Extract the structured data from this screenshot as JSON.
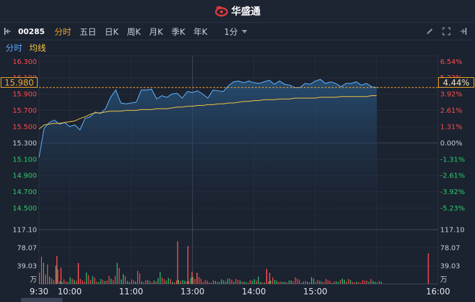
{
  "app": {
    "brand": "华盛通"
  },
  "toolbar": {
    "code": "00285",
    "tabs": [
      "分时",
      "五日",
      "日K",
      "周K",
      "月K",
      "季K",
      "年K"
    ],
    "period": "1分"
  },
  "subtabs": {
    "time": "分时",
    "avg": "均线"
  },
  "price_tag": "15.980",
  "pct_tag": "4.44%",
  "colors": {
    "up": "#ff4d4d",
    "down": "#2ecc71",
    "price_line": "#62b6ff",
    "avg_line": "#f5c542",
    "accent": "#f5a623"
  },
  "chart_data": {
    "type": "line",
    "price_axis": [
      "16.300",
      "16.100",
      "15.900",
      "15.700",
      "15.500",
      "15.300",
      "15.100",
      "14.900",
      "14.700",
      "14.500"
    ],
    "pct_axis": [
      "6.54%",
      "5.23%",
      "3.92%",
      "2.61%",
      "1.31%",
      "0.00%",
      "-1.31%",
      "-2.61%",
      "-3.92%",
      "-5.23%"
    ],
    "prev_close": 15.3,
    "ylim": [
      14.44,
      16.32
    ],
    "x_ticks": [
      "9:30",
      "10:00",
      "11:00",
      "13:00",
      "14:00",
      "15:00",
      "16:00"
    ],
    "volume_axis": [
      "117.10",
      "78.07",
      "39.03",
      "万"
    ],
    "x": [
      0,
      5,
      10,
      15,
      20,
      25,
      30,
      35,
      40,
      45,
      50,
      55,
      60,
      65,
      70,
      75,
      80,
      85,
      90,
      95,
      100,
      105,
      110,
      115,
      120,
      125,
      130,
      135,
      140,
      145,
      150,
      155,
      160,
      165,
      170,
      175,
      180,
      185,
      190,
      195,
      200,
      205,
      210,
      215,
      220,
      225,
      230,
      235,
      240,
      245,
      250,
      255,
      260,
      265,
      270,
      275,
      280,
      285,
      290,
      295,
      300,
      305,
      310,
      315,
      320,
      325,
      330
    ],
    "price": [
      15.12,
      15.48,
      15.55,
      15.58,
      15.53,
      15.55,
      15.5,
      15.52,
      15.46,
      15.6,
      15.62,
      15.68,
      15.66,
      15.72,
      15.86,
      15.95,
      15.79,
      15.78,
      15.79,
      15.8,
      15.95,
      15.95,
      15.96,
      15.84,
      15.88,
      15.86,
      15.9,
      15.91,
      15.85,
      15.93,
      15.92,
      15.94,
      15.9,
      15.85,
      15.95,
      15.94,
      15.93,
      16.0,
      16.05,
      16.06,
      16.04,
      16.06,
      16.04,
      16.03,
      16.05,
      16.07,
      16.02,
      16.06,
      16.02,
      16.01,
      15.98,
      15.98,
      16.03,
      16.02,
      16.06,
      16.08,
      16.03,
      16.05,
      16.03,
      15.99,
      16.03,
      16.03,
      16.05,
      16.01,
      16.03,
      15.99,
      15.98
    ],
    "avg": [
      15.47,
      15.52,
      15.53,
      15.54,
      15.54,
      15.55,
      15.56,
      15.57,
      15.6,
      15.62,
      15.65,
      15.67,
      15.67,
      15.68,
      15.69,
      15.69,
      15.69,
      15.7,
      15.7,
      15.7,
      15.71,
      15.71,
      15.71,
      15.72,
      15.72,
      15.72,
      15.73,
      15.74,
      15.74,
      15.75,
      15.75,
      15.76,
      15.76,
      15.77,
      15.77,
      15.78,
      15.78,
      15.79,
      15.79,
      15.8,
      15.81,
      15.81,
      15.82,
      15.82,
      15.83,
      15.83,
      15.83,
      15.84,
      15.84,
      15.84,
      15.85,
      15.85,
      15.85,
      15.85,
      15.85,
      15.86,
      15.86,
      15.86,
      15.86,
      15.87,
      15.87,
      15.87,
      15.87,
      15.87,
      15.87,
      15.88,
      15.88
    ],
    "volume": [
      48,
      30,
      14,
      30,
      8,
      6,
      10,
      11,
      10,
      20,
      12,
      6,
      8,
      14,
      12,
      40,
      16,
      8,
      8,
      20,
      6,
      8,
      6,
      18,
      12,
      10,
      6,
      9,
      6,
      10,
      14,
      12,
      6,
      4,
      6,
      8,
      8,
      10,
      8,
      10,
      4,
      6,
      12,
      4,
      6,
      10,
      8,
      4,
      6,
      8,
      10,
      4,
      6,
      12,
      6,
      6,
      8,
      4,
      6,
      10,
      8,
      6,
      4,
      6,
      8,
      6,
      5
    ],
    "volume_spikes": [
      {
        "x": 17,
        "v": 60
      },
      {
        "x": 21,
        "v": 35
      },
      {
        "x": 38,
        "v": 45
      },
      {
        "x": 135,
        "v": 92
      },
      {
        "x": 145,
        "v": 82
      },
      {
        "x": 149,
        "v": 26
      },
      {
        "x": 154,
        "v": 24
      },
      {
        "x": 222,
        "v": 32
      },
      {
        "x": 225,
        "v": 24
      },
      {
        "x": 380,
        "v": 66
      }
    ]
  }
}
